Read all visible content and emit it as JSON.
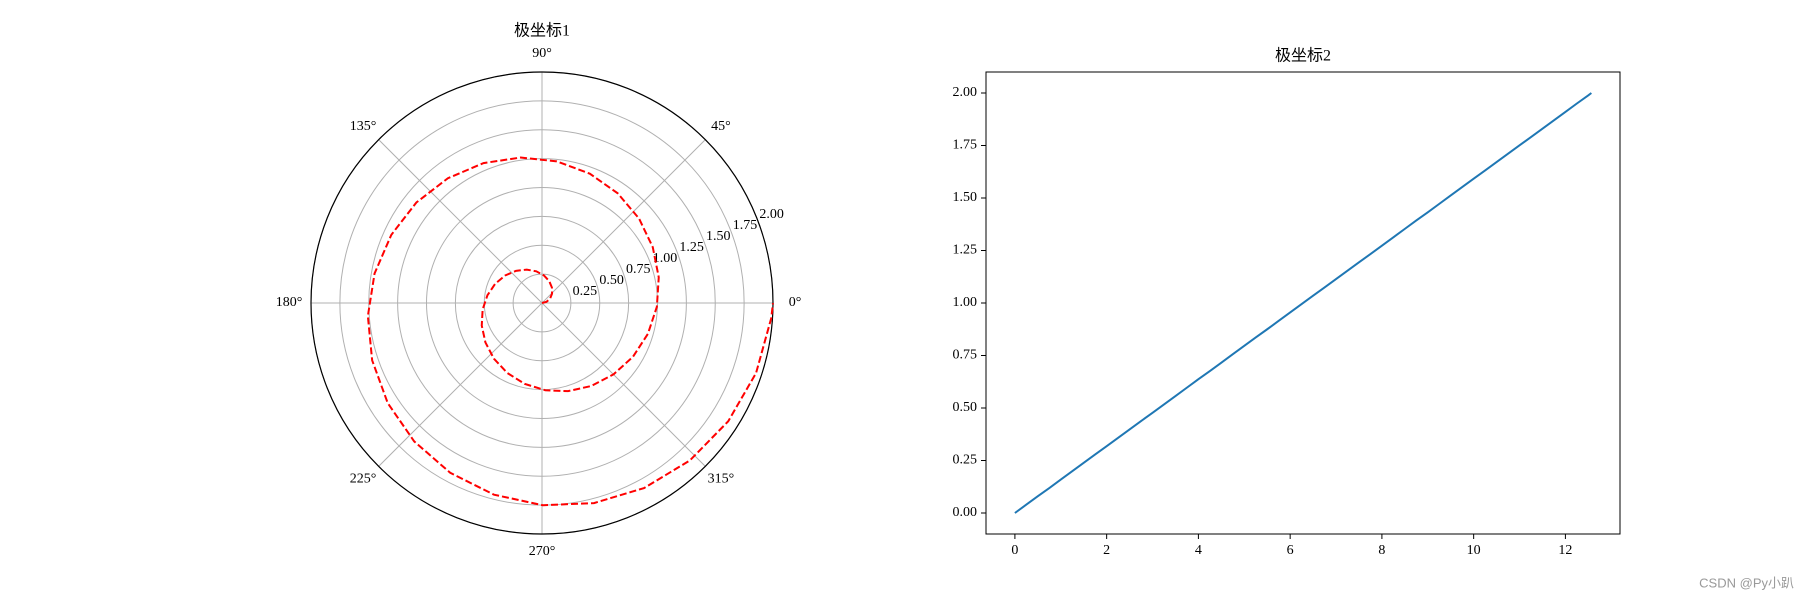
{
  "chart_data": [
    {
      "type": "polar",
      "title": "极坐标1",
      "color": "red",
      "linestyle": "dashed",
      "theta": [
        0,
        0.25,
        0.5,
        0.75,
        1,
        1.25,
        1.5,
        1.75,
        2,
        2.25,
        2.5,
        2.75,
        3,
        3.25,
        3.5,
        3.75,
        4,
        4.25,
        4.5,
        4.75,
        5,
        5.25,
        5.5,
        5.75,
        6,
        6.25,
        6.5,
        6.75,
        7,
        7.25,
        7.5,
        7.75,
        8,
        8.25,
        8.5,
        8.75,
        9,
        9.25,
        9.5,
        9.75,
        10,
        10.25,
        10.5,
        10.75,
        11,
        11.25,
        11.5,
        11.75,
        12,
        12.25,
        12.5,
        12.566
      ],
      "r": [
        0,
        0.04,
        0.08,
        0.119,
        0.159,
        0.199,
        0.239,
        0.279,
        0.318,
        0.358,
        0.398,
        0.438,
        0.477,
        0.517,
        0.557,
        0.597,
        0.637,
        0.676,
        0.716,
        0.756,
        0.796,
        0.836,
        0.875,
        0.915,
        0.955,
        0.995,
        1.035,
        1.074,
        1.114,
        1.154,
        1.194,
        1.233,
        1.273,
        1.313,
        1.353,
        1.393,
        1.432,
        1.472,
        1.512,
        1.552,
        1.592,
        1.631,
        1.671,
        1.711,
        1.751,
        1.79,
        1.83,
        1.87,
        1.91,
        1.95,
        1.989,
        2.0
      ],
      "rlim": [
        0,
        2
      ],
      "rticks": [
        0.25,
        {
          "value": 0.5,
          "label": "0.50"
        },
        0.75,
        {
          "value": 1,
          "label": "1.00"
        },
        1.25,
        {
          "value": 1.5,
          "label": "1.50"
        },
        1.75,
        {
          "value": 2,
          "label": "2.00"
        }
      ],
      "thetaticks": [
        {
          "value": 0,
          "label": "0°"
        },
        {
          "value": 45,
          "label": "45°"
        },
        {
          "value": 90,
          "label": "90°"
        },
        {
          "value": 135,
          "label": "135°"
        },
        {
          "value": 180,
          "label": "180°"
        },
        {
          "value": 225,
          "label": "225°"
        },
        {
          "value": 270,
          "label": "270°"
        },
        {
          "value": 315,
          "label": "315°"
        }
      ],
      "grid": true
    },
    {
      "type": "line",
      "title": "极坐标2",
      "color": "#1f77b4",
      "x": [
        0,
        0.25,
        0.5,
        0.75,
        1,
        1.25,
        1.5,
        1.75,
        2,
        2.25,
        2.5,
        2.75,
        3,
        3.25,
        3.5,
        3.75,
        4,
        4.25,
        4.5,
        4.75,
        5,
        5.25,
        5.5,
        5.75,
        6,
        6.25,
        6.5,
        6.75,
        7,
        7.25,
        7.5,
        7.75,
        8,
        8.25,
        8.5,
        8.75,
        9,
        9.25,
        9.5,
        9.75,
        10,
        10.25,
        10.5,
        10.75,
        11,
        11.25,
        11.5,
        11.75,
        12,
        12.25,
        12.5,
        12.566
      ],
      "y": [
        0,
        0.04,
        0.08,
        0.119,
        0.159,
        0.199,
        0.239,
        0.279,
        0.318,
        0.358,
        0.398,
        0.438,
        0.477,
        0.517,
        0.557,
        0.597,
        0.637,
        0.676,
        0.716,
        0.756,
        0.796,
        0.836,
        0.875,
        0.915,
        0.955,
        0.995,
        1.035,
        1.074,
        1.114,
        1.154,
        1.194,
        1.233,
        1.273,
        1.313,
        1.353,
        1.393,
        1.432,
        1.472,
        1.512,
        1.552,
        1.592,
        1.631,
        1.671,
        1.711,
        1.751,
        1.79,
        1.83,
        1.87,
        1.91,
        1.95,
        1.989,
        2.0
      ],
      "xlim": [
        -0.63,
        13.19
      ],
      "ylim": [
        -0.1,
        2.1
      ],
      "xticks": [
        0,
        2,
        4,
        6,
        8,
        10,
        12
      ],
      "yticks": [
        {
          "value": 0,
          "label": "0.00"
        },
        0.25,
        {
          "value": 0.5,
          "label": "0.50"
        },
        0.75,
        {
          "value": 1,
          "label": "1.00"
        },
        1.25,
        {
          "value": 1.5,
          "label": "1.50"
        },
        1.75,
        {
          "value": 2,
          "label": "2.00"
        }
      ]
    }
  ],
  "watermark": "CSDN @Py小趴"
}
